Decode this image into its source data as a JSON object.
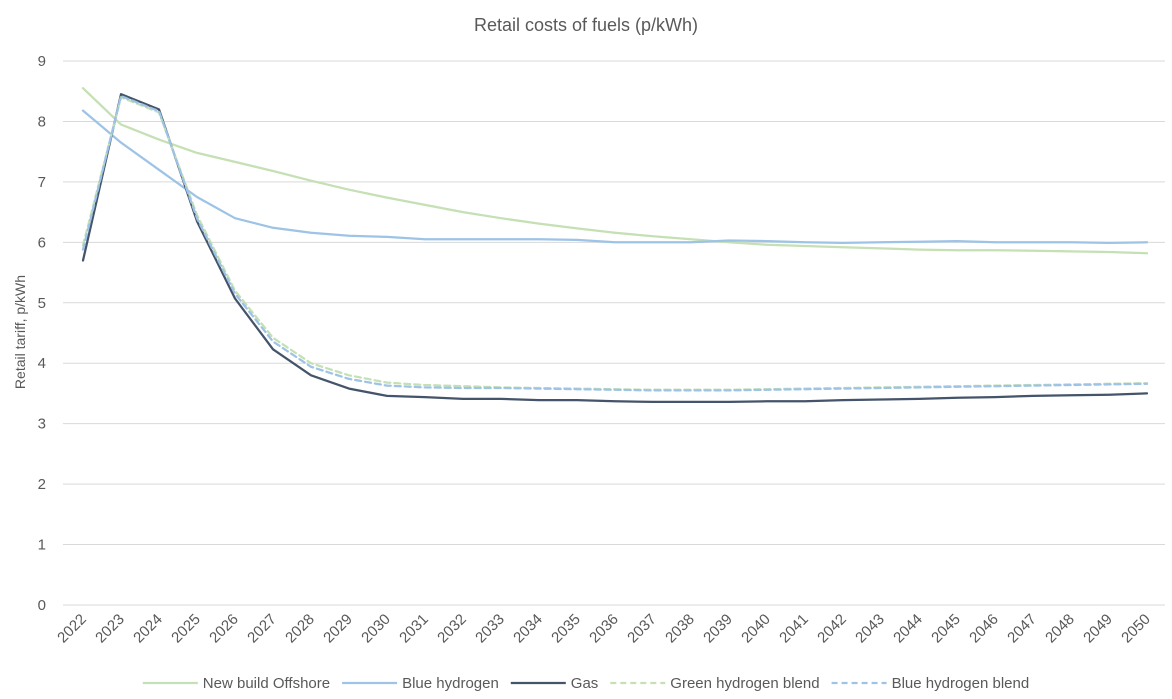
{
  "chart_data": {
    "type": "line",
    "title": "Retail costs of fuels (p/kWh)",
    "xlabel": "",
    "ylabel": "Retail tariff, p/kWh",
    "ylim": [
      0,
      9
    ],
    "yticks": [
      "0",
      "1",
      "2",
      "3",
      "4",
      "5",
      "6",
      "7",
      "8",
      "9"
    ],
    "grid": true,
    "legend_position": "bottom",
    "categories": [
      "2022",
      "2023",
      "2024",
      "2025",
      "2026",
      "2027",
      "2028",
      "2029",
      "2030",
      "2031",
      "2032",
      "2033",
      "2034",
      "2035",
      "2036",
      "2037",
      "2038",
      "2039",
      "2040",
      "2041",
      "2042",
      "2043",
      "2044",
      "2045",
      "2046",
      "2047",
      "2048",
      "2049",
      "2050"
    ],
    "series": [
      {
        "name": "New build Offshore",
        "color": "#c5e0b4",
        "dash": "solid",
        "values": [
          8.55,
          7.95,
          7.7,
          7.48,
          7.33,
          7.18,
          7.02,
          6.87,
          6.74,
          6.62,
          6.5,
          6.4,
          6.31,
          6.23,
          6.16,
          6.1,
          6.05,
          6.0,
          5.96,
          5.94,
          5.92,
          5.9,
          5.88,
          5.87,
          5.87,
          5.86,
          5.85,
          5.84,
          5.82
        ]
      },
      {
        "name": "Blue hydrogen",
        "color": "#9dc3e6",
        "dash": "solid",
        "values": [
          8.18,
          7.65,
          7.2,
          6.75,
          6.4,
          6.24,
          6.16,
          6.11,
          6.09,
          6.05,
          6.05,
          6.05,
          6.05,
          6.04,
          6.0,
          6.0,
          6.0,
          6.03,
          6.02,
          6.0,
          5.99,
          6.0,
          6.01,
          6.02,
          6.0,
          6.0,
          6.0,
          5.99,
          6.0
        ]
      },
      {
        "name": "Gas",
        "color": "#44546a",
        "dash": "solid",
        "values": [
          5.7,
          8.45,
          8.2,
          6.35,
          5.07,
          4.23,
          3.8,
          3.58,
          3.46,
          3.44,
          3.41,
          3.41,
          3.39,
          3.39,
          3.37,
          3.36,
          3.36,
          3.36,
          3.37,
          3.37,
          3.39,
          3.4,
          3.41,
          3.43,
          3.44,
          3.46,
          3.47,
          3.48,
          3.5
        ]
      },
      {
        "name": "Green hydrogen blend",
        "color": "#c5e0b4",
        "dash": "dashed",
        "values": [
          5.95,
          8.4,
          8.15,
          6.45,
          5.2,
          4.42,
          4.0,
          3.8,
          3.68,
          3.64,
          3.62,
          3.6,
          3.59,
          3.58,
          3.57,
          3.56,
          3.56,
          3.56,
          3.57,
          3.58,
          3.59,
          3.6,
          3.61,
          3.62,
          3.63,
          3.64,
          3.65,
          3.66,
          3.67
        ]
      },
      {
        "name": "Blue hydrogen blend",
        "color": "#9dc3e6",
        "dash": "dashed",
        "values": [
          5.88,
          8.42,
          8.17,
          6.4,
          5.15,
          4.36,
          3.94,
          3.74,
          3.63,
          3.6,
          3.59,
          3.59,
          3.58,
          3.57,
          3.56,
          3.55,
          3.55,
          3.55,
          3.56,
          3.57,
          3.58,
          3.59,
          3.6,
          3.61,
          3.62,
          3.63,
          3.64,
          3.65,
          3.66
        ]
      }
    ]
  }
}
